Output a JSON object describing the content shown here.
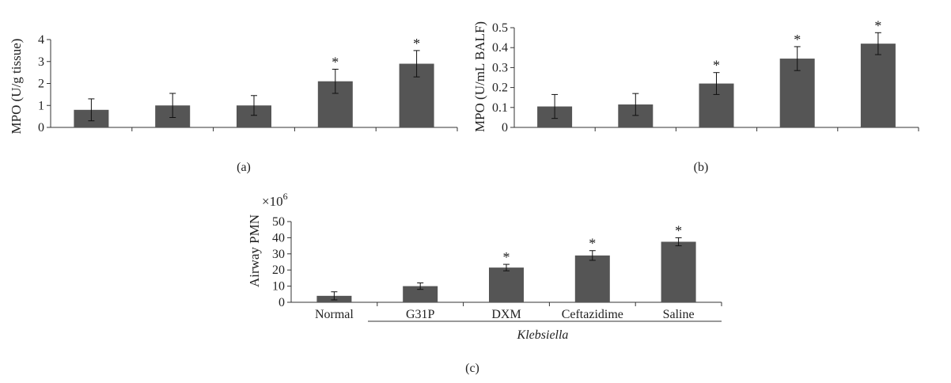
{
  "colors": {
    "bar": "#555555",
    "axis": "#333333"
  },
  "chart_data": [
    {
      "type": "bar",
      "panel": "(a)",
      "ylabel": "MPO (U/g tissue)",
      "ylim": [
        0,
        4
      ],
      "yticks": [
        0,
        1,
        2,
        3,
        4
      ],
      "categories": [
        "",
        "",
        "",
        "",
        ""
      ],
      "values": [
        0.8,
        1.0,
        1.0,
        2.1,
        2.9
      ],
      "errors": [
        0.5,
        0.55,
        0.45,
        0.55,
        0.6
      ],
      "significant": [
        false,
        false,
        false,
        true,
        true
      ],
      "marker": "*"
    },
    {
      "type": "bar",
      "panel": "(b)",
      "ylabel": "MPO (U/mL BALF)",
      "ylim": [
        0,
        0.5
      ],
      "yticks": [
        "0",
        "0.1",
        "0.2",
        "0.3",
        "0.4",
        "0.5"
      ],
      "categories": [
        "",
        "",
        "",
        "",
        ""
      ],
      "values": [
        0.105,
        0.115,
        0.22,
        0.345,
        0.42
      ],
      "errors": [
        0.06,
        0.055,
        0.055,
        0.06,
        0.055
      ],
      "significant": [
        false,
        false,
        true,
        true,
        true
      ],
      "marker": "*"
    },
    {
      "type": "bar",
      "panel": "(c)",
      "ylabel": "Airway PMN",
      "multiplier": "×10",
      "multiplier_exp": "6",
      "ylim": [
        0,
        50
      ],
      "yticks": [
        0,
        10,
        20,
        30,
        40,
        50
      ],
      "categories": [
        "Normal",
        "G31P",
        "DXM",
        "Ceftazidime",
        "Saline"
      ],
      "values": [
        4,
        10,
        21.5,
        29,
        37.5
      ],
      "errors": [
        2.5,
        2,
        2,
        3,
        2.5
      ],
      "significant": [
        false,
        false,
        true,
        true,
        true
      ],
      "marker": "*",
      "group_label": "Klebsiella"
    }
  ]
}
